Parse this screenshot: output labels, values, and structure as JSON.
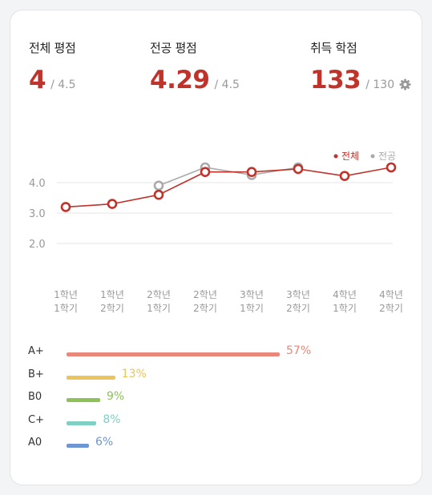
{
  "summary": {
    "overall": {
      "label": "전체 평점",
      "value": "4",
      "max": "/ 4.5"
    },
    "major": {
      "label": "전공 평점",
      "value": "4.29",
      "max": "/ 4.5"
    },
    "credits": {
      "label": "취득 학점",
      "value": "133",
      "max": "/ 130"
    }
  },
  "icons": {
    "settings": "gear-icon"
  },
  "colors": {
    "accent": "#c0332b",
    "major_line": "#aaaaaa"
  },
  "chart_data": {
    "type": "line",
    "categories": [
      [
        "1학년",
        "1학기"
      ],
      [
        "1학년",
        "2학기"
      ],
      [
        "2학년",
        "1학기"
      ],
      [
        "2학년",
        "2학기"
      ],
      [
        "3학년",
        "1학기"
      ],
      [
        "3학년",
        "2학기"
      ],
      [
        "4학년",
        "1학기"
      ],
      [
        "4학년",
        "2학기"
      ]
    ],
    "series": [
      {
        "name": "전체",
        "color": "#c0332b",
        "values": [
          3.2,
          3.3,
          3.6,
          4.35,
          4.35,
          4.45,
          4.22,
          4.5
        ]
      },
      {
        "name": "전공",
        "color": "#aaaaaa",
        "values": [
          null,
          null,
          3.9,
          4.5,
          4.25,
          4.5,
          null,
          null
        ]
      }
    ],
    "yticks": [
      "4.0",
      "3.0",
      "2.0"
    ],
    "ylim": [
      2.0,
      4.5
    ],
    "grid": true,
    "legend_position": "top-right"
  },
  "distribution": [
    {
      "grade": "A+",
      "percent": 57,
      "label": "57%",
      "color": "#e8877a"
    },
    {
      "grade": "B+",
      "percent": 13,
      "label": "13%",
      "color": "#ebc45e"
    },
    {
      "grade": "B0",
      "percent": 9,
      "label": "9%",
      "color": "#8dc259"
    },
    {
      "grade": "C+",
      "percent": 8,
      "label": "8%",
      "color": "#7ecfc4"
    },
    {
      "grade": "A0",
      "percent": 6,
      "label": "6%",
      "color": "#6e96d2"
    }
  ]
}
